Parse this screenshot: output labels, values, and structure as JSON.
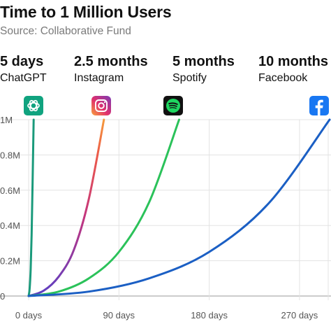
{
  "chart_data": {
    "type": "line",
    "title": "Time to 1 Million Users",
    "subtitle": "Source: Collaborative Fund",
    "xlabel": "",
    "ylabel": "",
    "x_ticks": [
      "0 days",
      "90 days",
      "180 days",
      "270 days"
    ],
    "y_ticks": [
      "0",
      "0.2M",
      "0.4M",
      "0.6M",
      "0.8M",
      "1M"
    ],
    "xlim": [
      0,
      300
    ],
    "ylim": [
      0,
      1000000
    ],
    "grid": true,
    "series": [
      {
        "name": "ChatGPT",
        "color": "#1a9a7b",
        "x": [
          0,
          1,
          2,
          3,
          4,
          5
        ],
        "y": [
          0,
          40000,
          150000,
          350000,
          650000,
          1000000
        ]
      },
      {
        "name": "Instagram",
        "color": "#d9406e",
        "x": [
          0,
          15,
          30,
          45,
          60,
          75
        ],
        "y": [
          0,
          30000,
          110000,
          260000,
          550000,
          1000000
        ]
      },
      {
        "name": "Spotify",
        "color": "#2bc25a",
        "x": [
          0,
          30,
          60,
          90,
          120,
          150
        ],
        "y": [
          0,
          25000,
          100000,
          250000,
          530000,
          1000000
        ]
      },
      {
        "name": "Facebook",
        "color": "#1b5fc4",
        "x": [
          0,
          60,
          120,
          180,
          240,
          300
        ],
        "y": [
          0,
          25000,
          100000,
          250000,
          530000,
          1000000
        ]
      }
    ],
    "annotations": [
      {
        "duration": "5 days",
        "app": "ChatGPT",
        "icon": "chatgpt-icon"
      },
      {
        "duration": "2.5 months",
        "app": "Instagram",
        "icon": "instagram-icon"
      },
      {
        "duration": "5 months",
        "app": "Spotify",
        "icon": "spotify-icon"
      },
      {
        "duration": "10 months",
        "app": "Facebook",
        "icon": "facebook-icon"
      }
    ]
  }
}
